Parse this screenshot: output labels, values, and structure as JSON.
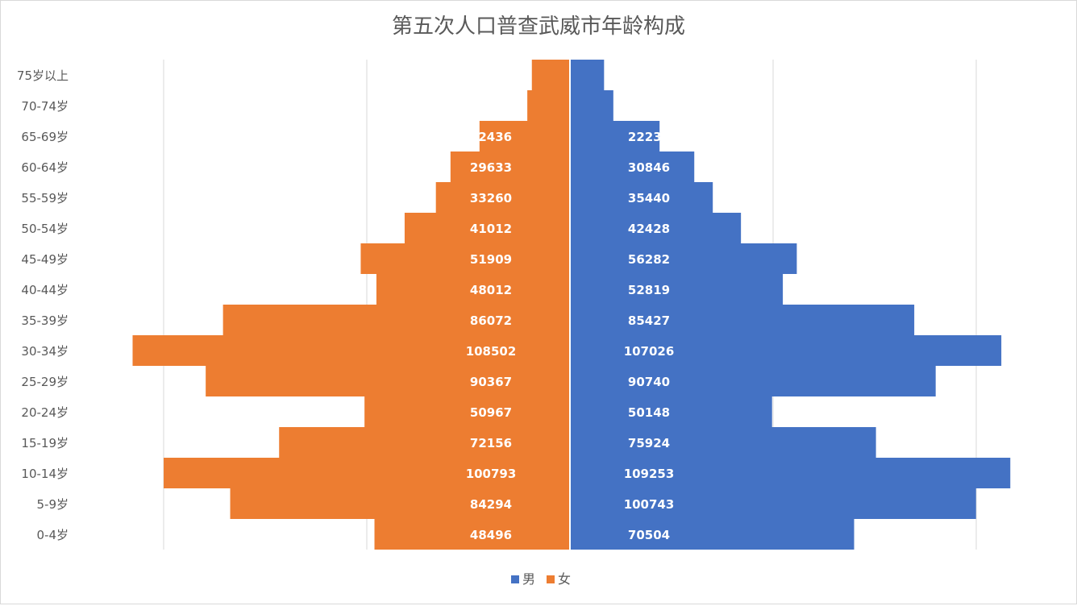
{
  "chart_data": {
    "type": "bar",
    "orientation": "horizontal",
    "layout": "population-pyramid",
    "title": "第五次人口普查武威市年龄构成",
    "categories": [
      "0-4岁",
      "5-9岁",
      "10-14岁",
      "15-19岁",
      "20-24岁",
      "25-29岁",
      "30-34岁",
      "35-39岁",
      "40-44岁",
      "45-49岁",
      "50-54岁",
      "55-59岁",
      "60-64岁",
      "65-69岁",
      "70-74岁",
      "75岁以上"
    ],
    "series": [
      {
        "name": "男",
        "side": "right",
        "color": "#4472C4",
        "values": [
          70504,
          100743,
          109253,
          75924,
          50148,
          90740,
          107026,
          85427,
          52819,
          56282,
          42428,
          35440,
          30846,
          22239,
          10766,
          8466
        ]
      },
      {
        "name": "女",
        "side": "left",
        "color": "#ED7D31",
        "values": [
          48496,
          84294,
          100793,
          72156,
          50967,
          90367,
          108502,
          86072,
          48012,
          51909,
          41012,
          33260,
          29633,
          22436,
          10577,
          9449
        ]
      }
    ],
    "xlim": [
      -120000,
      120000
    ],
    "grid": true,
    "legend": "bottom",
    "data_labels": true,
    "text_color": "#595959",
    "grid_color": "#D9D9D9",
    "label_color": "#ffffff"
  }
}
